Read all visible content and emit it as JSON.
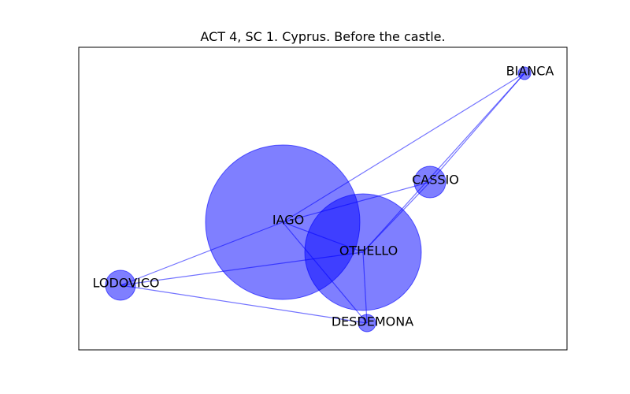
{
  "title": "ACT 4, SC 1. Cyprus. Before the castle.",
  "colors": {
    "node_fill": "#0000ff",
    "node_opacity": 0.5,
    "edge_color": "#0000ff",
    "edge_opacity": 0.55,
    "frame": "#000000",
    "background": "#ffffff"
  },
  "nodes": [
    {
      "id": "IAGO",
      "label": "IAGO",
      "weight": 1.0
    },
    {
      "id": "OTHELLO",
      "label": "OTHELLO",
      "weight": 0.56
    },
    {
      "id": "CASSIO",
      "label": "CASSIO",
      "weight": 0.04
    },
    {
      "id": "LODOVICO",
      "label": "LODOVICO",
      "weight": 0.03
    },
    {
      "id": "DESDEMONA",
      "label": "DESDEMONA",
      "weight": 0.01
    },
    {
      "id": "BIANCA",
      "label": "BIANCA",
      "weight": 0.005
    }
  ],
  "edges": [
    [
      "IAGO",
      "OTHELLO"
    ],
    [
      "IAGO",
      "CASSIO"
    ],
    [
      "IAGO",
      "BIANCA"
    ],
    [
      "IAGO",
      "LODOVICO"
    ],
    [
      "IAGO",
      "DESDEMONA"
    ],
    [
      "OTHELLO",
      "CASSIO"
    ],
    [
      "OTHELLO",
      "BIANCA"
    ],
    [
      "OTHELLO",
      "LODOVICO"
    ],
    [
      "OTHELLO",
      "DESDEMONA"
    ],
    [
      "CASSIO",
      "BIANCA"
    ],
    [
      "LODOVICO",
      "DESDEMONA"
    ]
  ]
}
